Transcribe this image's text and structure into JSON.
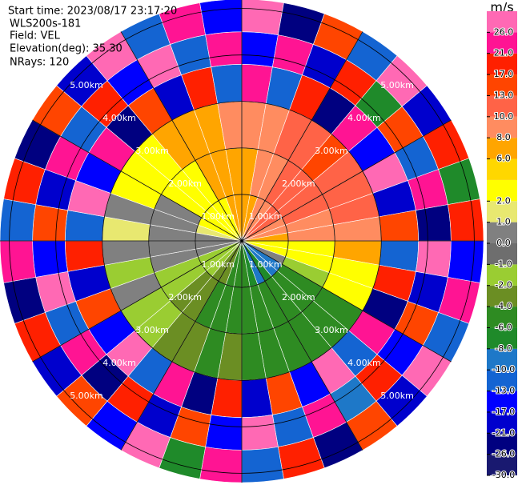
{
  "chart_data": {
    "type": "ppi",
    "header": [
      "Start time: 2023/08/17 23:17:20",
      "WLS200s-181",
      "Field: VEL",
      "Elevation(deg): 35.30",
      "NRays: 120"
    ],
    "colorbar_label": "m/s",
    "levels": [
      -30,
      -26,
      -21,
      -17,
      -13,
      -10,
      -8,
      -6,
      -4,
      -2,
      -1,
      0,
      1,
      2,
      4,
      6,
      8,
      10,
      13,
      17,
      21,
      26,
      30
    ],
    "colors": [
      "#191970",
      "#000080",
      "#0000cd",
      "#0000ff",
      "#1464d2",
      "#1e78c8",
      "#1f8a2a",
      "#2e8b22",
      "#6b8e23",
      "#9acd32",
      "#6e6e6e",
      "#808080",
      "#e8e870",
      "#ffff00",
      "#ffd700",
      "#ffa500",
      "#ff8c60",
      "#ff6347",
      "#ff4500",
      "#ff2000",
      "#ff1493",
      "#ff69b4"
    ],
    "cticks": [
      {
        "value": 26,
        "label": "26.0"
      },
      {
        "value": 21,
        "label": "21.0"
      },
      {
        "value": 17,
        "label": "17.0"
      },
      {
        "value": 13,
        "label": "13.0"
      },
      {
        "value": 10,
        "label": "10.0"
      },
      {
        "value": 8,
        "label": "8.0"
      },
      {
        "value": 6,
        "label": "6.0"
      },
      {
        "value": 2,
        "label": "2.0"
      },
      {
        "value": 1,
        "label": "1.0"
      },
      {
        "value": 0,
        "label": "0.0"
      },
      {
        "value": -1,
        "label": "-1.0"
      },
      {
        "value": -2,
        "label": "-2.0"
      },
      {
        "value": -4,
        "label": "-4.0"
      },
      {
        "value": -6,
        "label": "-6.0"
      },
      {
        "value": -8,
        "label": "-8.0"
      },
      {
        "value": -10,
        "label": "-10.0"
      },
      {
        "value": -13,
        "label": "-13.0"
      },
      {
        "value": -17,
        "label": "-17.0"
      },
      {
        "value": -21,
        "label": "-21.0"
      },
      {
        "value": -26,
        "label": "-26.0"
      },
      {
        "value": -30,
        "label": "-30.0"
      }
    ],
    "rlim": [
      0,
      5.2
    ],
    "range_rings": [
      {
        "value": 1,
        "label": "1.00km"
      },
      {
        "value": 2,
        "label": "2.00km"
      },
      {
        "value": 3,
        "label": "3.00km"
      },
      {
        "value": 4,
        "label": "4.00km"
      },
      {
        "value": 5,
        "label": "5.00km"
      }
    ],
    "gate_edges": [
      0,
      1,
      2,
      3,
      3.8,
      4.5,
      5.2
    ],
    "values": [
      [
        6,
        6,
        8,
        21,
        -17,
        26
      ],
      [
        6,
        8,
        8,
        -13,
        21,
        -26
      ],
      [
        8,
        8,
        10,
        17,
        -21,
        13
      ],
      [
        8,
        10,
        10,
        -26,
        17,
        -13
      ],
      [
        10,
        10,
        13,
        21,
        -8,
        26
      ],
      [
        10,
        10,
        10,
        -17,
        13,
        -21
      ],
      [
        8,
        10,
        10,
        26,
        -13,
        17
      ],
      [
        8,
        8,
        10,
        -21,
        21,
        -8
      ],
      [
        6,
        8,
        8,
        13,
        -26,
        17
      ],
      [
        3,
        3,
        6,
        -13,
        26,
        -17
      ],
      [
        2,
        3,
        3,
        17,
        -21,
        21
      ],
      [
        0,
        -2,
        2,
        -26,
        13,
        -13
      ],
      [
        -10,
        -6,
        -6,
        21,
        -17,
        26
      ],
      [
        -10,
        -6,
        -6,
        -13,
        17,
        -21
      ],
      [
        -8,
        -6,
        -6,
        26,
        -10,
        13
      ],
      [
        -10,
        -6,
        -6,
        -17,
        21,
        -26
      ],
      [
        -8,
        -6,
        -6,
        13,
        -13,
        17
      ],
      [
        -6,
        -6,
        -6,
        -21,
        26,
        -13
      ],
      [
        -6,
        -6,
        -4,
        17,
        -17,
        21
      ],
      [
        -6,
        -6,
        -6,
        -26,
        13,
        -8
      ],
      [
        -4,
        -6,
        -4,
        21,
        -21,
        26
      ],
      [
        -4,
        -4,
        -4,
        -13,
        17,
        -17
      ],
      [
        -2,
        -4,
        -2,
        26,
        -26,
        13
      ],
      [
        -2,
        -2,
        -2,
        -17,
        21,
        -21
      ],
      [
        -2,
        -2,
        0,
        13,
        -13,
        17
      ],
      [
        0,
        0,
        -2,
        -21,
        26,
        -26
      ],
      [
        0,
        0,
        0,
        17,
        -17,
        21
      ],
      [
        0,
        0,
        1,
        -13,
        13,
        -13
      ],
      [
        1,
        0,
        0,
        26,
        -21,
        17
      ],
      [
        2,
        0,
        2,
        -17,
        21,
        -26
      ],
      [
        2,
        3,
        2,
        21,
        -13,
        13
      ],
      [
        3,
        2,
        3,
        -26,
        17,
        -21
      ],
      [
        3,
        3,
        6,
        13,
        -17,
        26
      ],
      [
        3,
        6,
        6,
        -21,
        26,
        -13
      ],
      [
        6,
        6,
        6,
        17,
        -13,
        21
      ],
      [
        6,
        6,
        8,
        -13,
        21,
        -17
      ]
    ]
  }
}
